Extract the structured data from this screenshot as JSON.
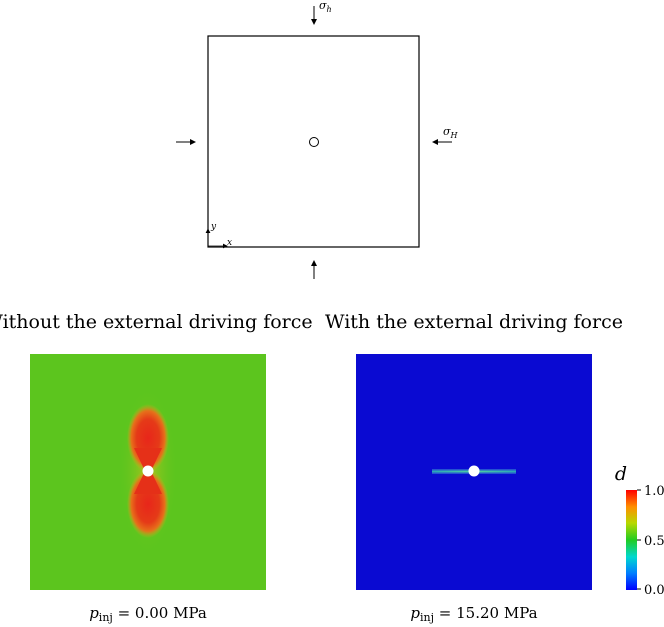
{
  "schematic": {
    "sigma_h_symbol": "σ",
    "sigma_h_sub": "h",
    "sigma_H_symbol": "σ",
    "sigma_H_sub": "H",
    "axis_x": "x",
    "axis_y": "y"
  },
  "panels": [
    {
      "title": "Without the external driving force",
      "p_symbol": "p",
      "p_sub": "inj",
      "p_value": " = 0.00 MPa"
    },
    {
      "title": "With the external driving force",
      "p_symbol": "p",
      "p_sub": "inj",
      "p_value": " = 15.20 MPa"
    }
  ],
  "colorbar": {
    "label": "d",
    "ticks": [
      "1.0",
      "0.5",
      "0.0"
    ]
  },
  "colors": {
    "phase_field_background_left": "#5cc51e",
    "phase_field_background_right": "#0a0ad2",
    "crack_damage": "#e8261a",
    "crack_right": "#2fbfae",
    "colormap": [
      "#0000ff",
      "#00c8ff",
      "#00e080",
      "#3ecb12",
      "#d0d000",
      "#ff8800",
      "#ff0000"
    ]
  }
}
